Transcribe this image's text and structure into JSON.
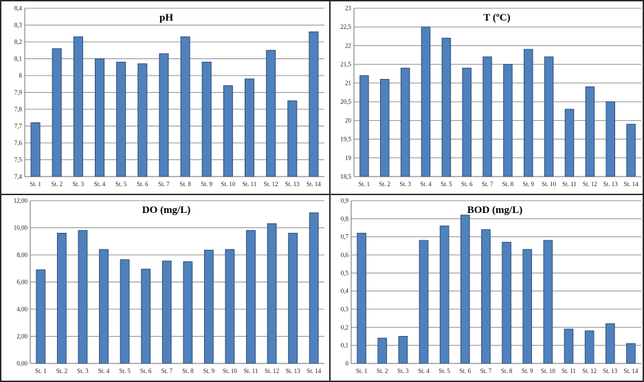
{
  "colors": {
    "bar": "#4f81bd",
    "bar_edge": "#2c4d75",
    "grid": "#8c8c8c",
    "border": "#2a2a2a"
  },
  "chart_data": [
    {
      "type": "bar",
      "title": "pH",
      "categories": [
        "St. 1",
        "St. 2",
        "St. 3",
        "St. 4",
        "St. 5",
        "St. 6",
        "St. 7",
        "St. 8",
        "St. 9",
        "St. 10",
        "St. 11",
        "St. 12",
        "St. 13",
        "St. 14"
      ],
      "values": [
        7.72,
        8.16,
        8.23,
        8.1,
        8.08,
        8.07,
        8.13,
        8.23,
        8.08,
        7.94,
        7.98,
        8.15,
        7.85,
        8.26
      ],
      "ylim": [
        7.4,
        8.4
      ],
      "yticks": [
        "7,4",
        "7,5",
        "7,6",
        "7,7",
        "7,8",
        "7,9",
        "8",
        "8,1",
        "8,2",
        "8,3",
        "8,4"
      ],
      "grid": true
    },
    {
      "type": "bar",
      "title": "T (ºC)",
      "categories": [
        "St. 1",
        "St. 2",
        "St. 3",
        "St. 4",
        "St. 5",
        "St. 6",
        "St. 7",
        "St. 8",
        "St. 9",
        "St. 10",
        "St. 11",
        "St. 12",
        "St. 13",
        "St. 14"
      ],
      "values": [
        21.2,
        21.1,
        21.4,
        22.5,
        22.2,
        21.4,
        21.7,
        21.5,
        21.9,
        21.7,
        20.3,
        20.9,
        20.5,
        19.9
      ],
      "ylim": [
        18.5,
        23
      ],
      "yticks": [
        "18,5",
        "19",
        "19,5",
        "20",
        "20,5",
        "21",
        "21,5",
        "22",
        "22,5",
        "23"
      ],
      "grid": true
    },
    {
      "type": "bar",
      "title": "DO (mg/L)",
      "categories": [
        "St. 1",
        "St. 2",
        "St. 3",
        "St. 4",
        "St. 5",
        "St. 6",
        "St. 7",
        "St. 8",
        "St. 9",
        "St. 10",
        "St. 11",
        "St. 12",
        "St. 13",
        "St. 14"
      ],
      "values": [
        6.9,
        9.6,
        9.8,
        8.4,
        7.65,
        6.95,
        7.55,
        7.5,
        8.35,
        8.4,
        9.8,
        10.3,
        9.6,
        11.1
      ],
      "ylim": [
        0,
        12
      ],
      "yticks": [
        "0,00",
        "2,00",
        "4,00",
        "6,00",
        "8,00",
        "10,00",
        "12,00"
      ],
      "grid": true
    },
    {
      "type": "bar",
      "title": "BOD (mg/L)",
      "categories": [
        "St. 1",
        "St. 2",
        "St. 3",
        "St. 4",
        "St. 5",
        "St. 6",
        "St. 7",
        "St. 8",
        "St. 9",
        "St. 10",
        "St. 11",
        "St. 12",
        "St. 13",
        "St. 14"
      ],
      "values": [
        0.72,
        0.14,
        0.15,
        0.68,
        0.76,
        0.82,
        0.74,
        0.67,
        0.63,
        0.68,
        0.19,
        0.18,
        0.22,
        0.11
      ],
      "ylim": [
        0,
        0.9
      ],
      "yticks": [
        "0",
        "0,1",
        "0,2",
        "0,3",
        "0,4",
        "0,5",
        "0,6",
        "0,7",
        "0,8",
        "0,9"
      ],
      "grid": true
    }
  ]
}
